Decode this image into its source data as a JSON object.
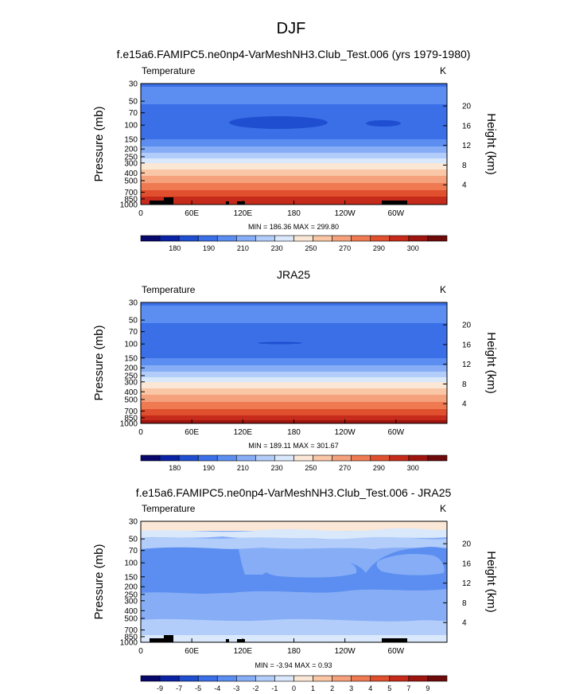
{
  "page": {
    "title": "DJF"
  },
  "colors": {
    "temp_levels": [
      "#08076b",
      "#0a23a6",
      "#1f4fd0",
      "#3a6fe8",
      "#5b8ef0",
      "#86adf6",
      "#b2cdfa",
      "#d9e8fb",
      "#fbe7d6",
      "#f9c6a6",
      "#f5a17b",
      "#ef7a52",
      "#e0502e",
      "#c52a1a",
      "#9e1510",
      "#6d0a0a"
    ],
    "diff_levels": [
      "#08076b",
      "#0a23a6",
      "#1f4fd0",
      "#3a6fe8",
      "#5b8ef0",
      "#86adf6",
      "#b2cdfa",
      "#d9e8fb",
      "#fbe7d6",
      "#f9c6a6",
      "#f5a17b",
      "#ef7a52",
      "#e0502e",
      "#c52a1a",
      "#9e1510",
      "#6d0a0a"
    ],
    "terrain": "#000000"
  },
  "chart_data": [
    {
      "type": "contour",
      "panel_title": "f.e15a6.FAMIPC5.ne0np4-VarMeshNH3.Club_Test.006 (yrs 1979-1980)",
      "left_label": "Temperature",
      "units": "K",
      "ylabel": "Pressure (mb)",
      "y2label": "Height (km)",
      "pressure_ticks": [
        "30",
        "50",
        "70",
        "100",
        "150",
        "200",
        "250",
        "300",
        "400",
        "500",
        "700",
        "850",
        "1000"
      ],
      "height_ticks": [
        "20",
        "16",
        "12",
        "8",
        "4"
      ],
      "x_ticks": [
        "0",
        "60E",
        "120E",
        "180",
        "120W",
        "60W"
      ],
      "stats": "MIN = 186.36  MAX = 299.80",
      "colorbar_labels": [
        "180",
        "190",
        "210",
        "230",
        "250",
        "270",
        "290",
        "300"
      ]
    },
    {
      "type": "contour",
      "panel_title": "JRA25",
      "left_label": "Temperature",
      "units": "K",
      "ylabel": "Pressure (mb)",
      "y2label": "Height (km)",
      "pressure_ticks": [
        "30",
        "50",
        "70",
        "100",
        "150",
        "200",
        "250",
        "300",
        "400",
        "500",
        "700",
        "850",
        "1000"
      ],
      "height_ticks": [
        "20",
        "16",
        "12",
        "8",
        "4"
      ],
      "x_ticks": [
        "0",
        "60E",
        "120E",
        "180",
        "120W",
        "60W"
      ],
      "stats": "MIN = 189.11  MAX = 301.67",
      "colorbar_labels": [
        "180",
        "190",
        "210",
        "230",
        "250",
        "270",
        "290",
        "300"
      ]
    },
    {
      "type": "contour",
      "panel_title": "f.e15a6.FAMIPC5.ne0np4-VarMeshNH3.Club_Test.006 - JRA25",
      "left_label": "Temperature",
      "units": "K",
      "ylabel": "Pressure (mb)",
      "y2label": "Height (km)",
      "pressure_ticks": [
        "30",
        "50",
        "70",
        "100",
        "150",
        "200",
        "250",
        "300",
        "400",
        "500",
        "700",
        "850",
        "1000"
      ],
      "height_ticks": [
        "20",
        "16",
        "12",
        "8",
        "4"
      ],
      "x_ticks": [
        "0",
        "60E",
        "120E",
        "180",
        "120W",
        "60W"
      ],
      "stats": "MIN = -3.94  MAX =  0.93",
      "colorbar_labels": [
        "-9",
        "-7",
        "-5",
        "-4",
        "-3",
        "-2",
        "-1",
        "0",
        "1",
        "2",
        "3",
        "4",
        "5",
        "7",
        "9"
      ]
    }
  ]
}
